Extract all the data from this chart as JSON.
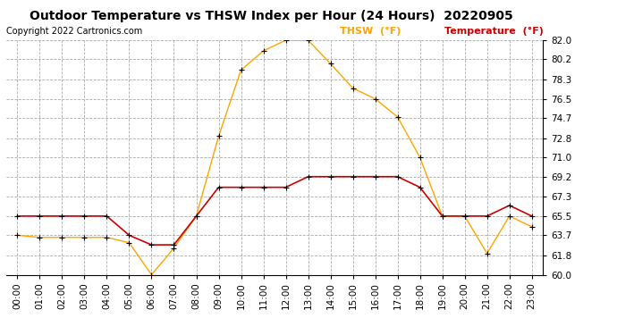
{
  "title": "Outdoor Temperature vs THSW Index per Hour (24 Hours)  20220905",
  "copyright": "Copyright 2022 Cartronics.com",
  "legend_thsw": "THSW  (°F)",
  "legend_temp": "Temperature  (°F)",
  "hours": [
    0,
    1,
    2,
    3,
    4,
    5,
    6,
    7,
    8,
    9,
    10,
    11,
    12,
    13,
    14,
    15,
    16,
    17,
    18,
    19,
    20,
    21,
    22,
    23
  ],
  "temperature": [
    65.5,
    65.5,
    65.5,
    65.5,
    65.5,
    63.7,
    62.8,
    62.8,
    65.5,
    68.2,
    68.2,
    68.2,
    68.2,
    69.2,
    69.2,
    69.2,
    69.2,
    69.2,
    68.2,
    65.5,
    65.5,
    65.5,
    66.5,
    65.5
  ],
  "thsw": [
    63.7,
    63.5,
    63.5,
    63.5,
    63.5,
    63.0,
    60.0,
    62.5,
    65.5,
    73.0,
    79.2,
    81.0,
    82.0,
    82.0,
    79.8,
    77.5,
    76.5,
    74.8,
    71.0,
    65.5,
    65.5,
    62.0,
    65.5,
    64.5
  ],
  "ylim": [
    60.0,
    82.0
  ],
  "yticks": [
    60.0,
    61.8,
    63.7,
    65.5,
    67.3,
    69.2,
    71.0,
    72.8,
    74.7,
    76.5,
    78.3,
    80.2,
    82.0
  ],
  "thsw_color": "#FFA500",
  "temp_color": "#CC0000",
  "background_color": "#FFFFFF",
  "grid_color": "#AAAAAA",
  "title_fontsize": 10,
  "copyright_fontsize": 7,
  "legend_fontsize": 8,
  "tick_fontsize": 7.5
}
